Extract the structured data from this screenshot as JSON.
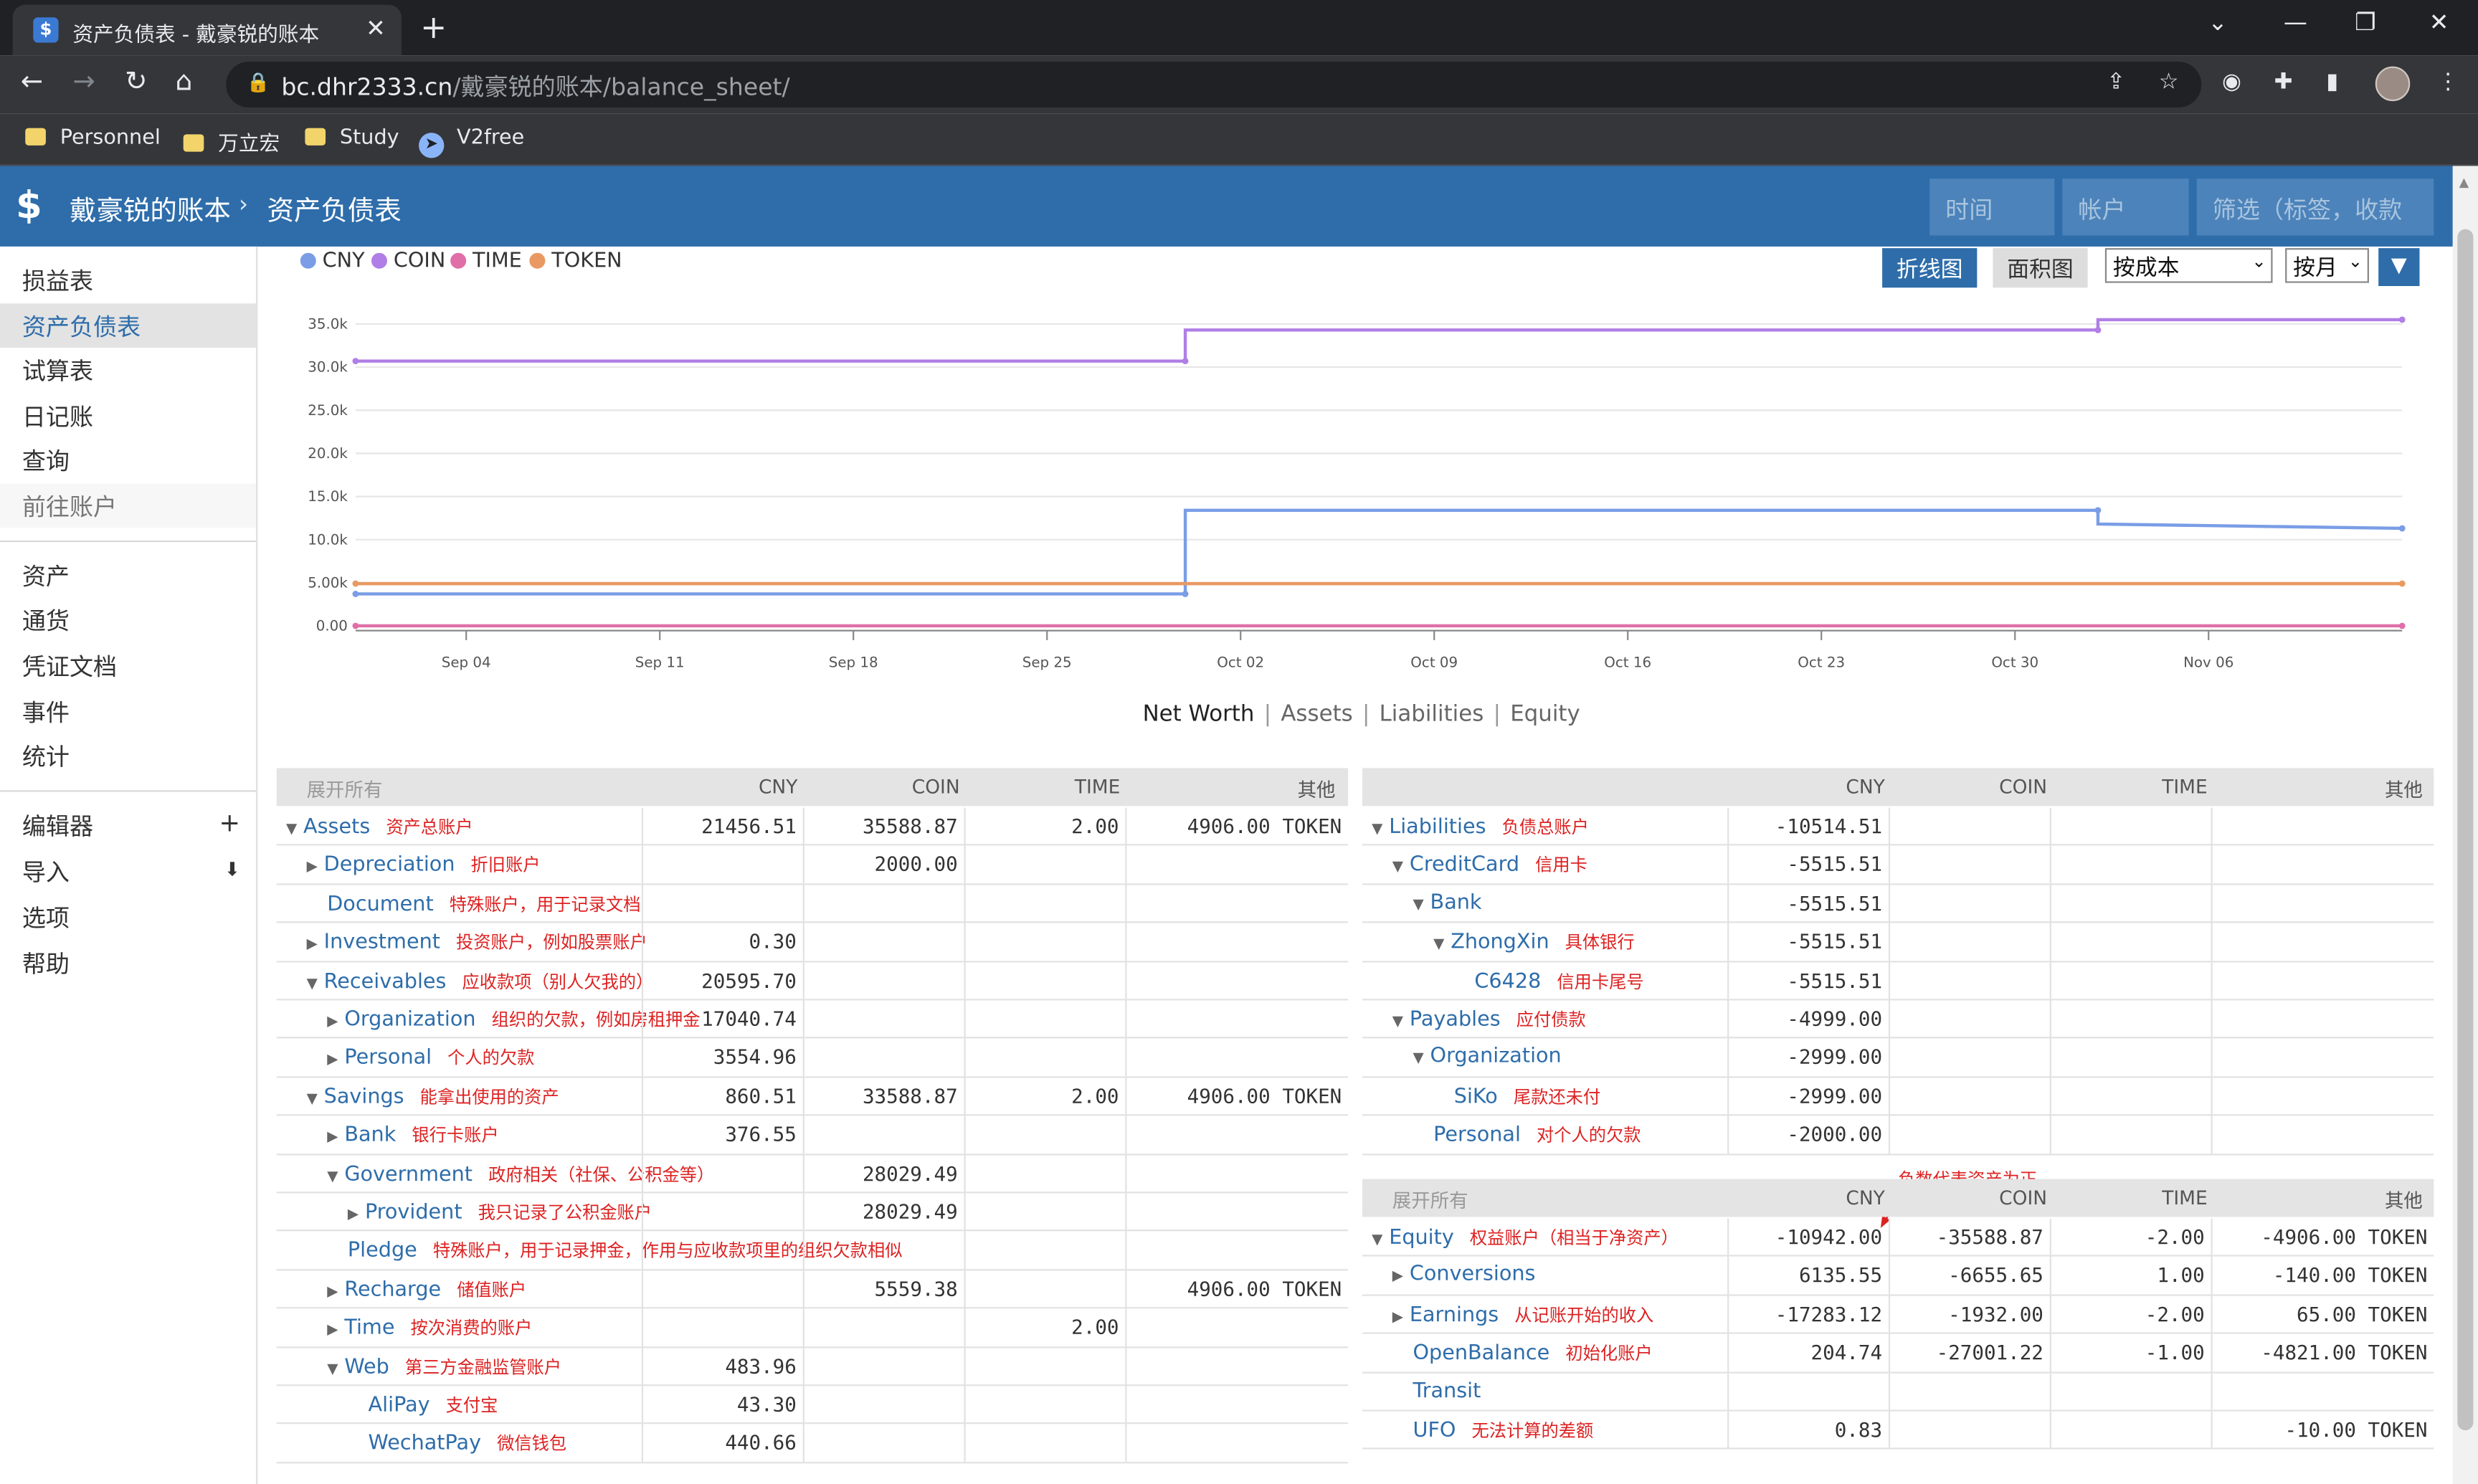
{
  "browser": {
    "tab_title": "资产负债表 - 戴豪锐的账本",
    "url_host": "bc.dhr2333.cn",
    "url_path": "/戴豪锐的账本/balance_sheet/",
    "bookmarks": [
      "Personnel",
      "万立宏",
      "Study",
      "V2free"
    ]
  },
  "header": {
    "app_title": "戴豪锐的账本",
    "separator": "›",
    "page_title": "资产负债表",
    "time_placeholder": "时间",
    "account_placeholder": "帐户",
    "filter_placeholder": "筛选（标签，收款"
  },
  "sidebar": {
    "group1": [
      "损益表",
      "资产负债表",
      "试算表",
      "日记账",
      "查询",
      "前往账户"
    ],
    "group2": [
      "资产",
      "通货",
      "凭证文档",
      "事件",
      "统计"
    ],
    "group3": [
      "编辑器",
      "导入",
      "选项",
      "帮助"
    ],
    "active": "资产负债表"
  },
  "chart_controls": {
    "line_btn": "折线图",
    "area_btn": "面积图",
    "conversion": "按成本",
    "interval": "按月",
    "tabs": [
      "Net Worth",
      "Assets",
      "Liabilities",
      "Equity"
    ],
    "active_tab": "Net Worth"
  },
  "chart_data": {
    "type": "line",
    "series": [
      {
        "name": "CNY",
        "color": "#7a9de6",
        "points": [
          [
            "2022-08-31",
            3700
          ],
          [
            "2022-09-30",
            3700
          ],
          [
            "2022-09-30",
            13400
          ],
          [
            "2022-11-02",
            13400
          ],
          [
            "2022-11-02",
            11800
          ],
          [
            "2022-11-13",
            11300
          ]
        ]
      },
      {
        "name": "COIN",
        "color": "#b07ee6",
        "points": [
          [
            "2022-08-31",
            30700
          ],
          [
            "2022-09-30",
            30700
          ],
          [
            "2022-09-30",
            34300
          ],
          [
            "2022-11-02",
            34300
          ],
          [
            "2022-11-02",
            35500
          ],
          [
            "2022-11-13",
            35500
          ]
        ]
      },
      {
        "name": "TIME",
        "color": "#e06fa8",
        "points": [
          [
            "2022-08-31",
            0
          ],
          [
            "2022-11-13",
            0
          ]
        ]
      },
      {
        "name": "TOKEN",
        "color": "#e89a62",
        "points": [
          [
            "2022-08-31",
            4900
          ],
          [
            "2022-11-13",
            4900
          ]
        ]
      }
    ],
    "y_ticks": [
      "0.00",
      "5.00k",
      "10.0k",
      "15.0k",
      "20.0k",
      "25.0k",
      "30.0k",
      "35.0k"
    ],
    "x_ticks": [
      "Sep 04",
      "Sep 11",
      "Sep 18",
      "Sep 25",
      "Oct 02",
      "Oct 09",
      "Oct 16",
      "Oct 23",
      "Oct 30",
      "Nov 06"
    ],
    "ylim": [
      0,
      35000
    ],
    "legend_position": "top-left",
    "grid": "horizontal"
  },
  "tables": {
    "headers": {
      "expand_all": "展开所有",
      "cny": "CNY",
      "coin": "COIN",
      "time": "TIME",
      "other": "其他"
    },
    "assets": [
      {
        "name": "Assets",
        "note": "资产总账户",
        "level": 0,
        "tri": "open",
        "cny": "21456.51",
        "coin": "35588.87",
        "time": "2.00",
        "other": "4906.00 TOKEN"
      },
      {
        "name": "Depreciation",
        "note": "折旧账户",
        "level": 1,
        "tri": "closed",
        "cny": "",
        "coin": "2000.00",
        "time": "",
        "other": ""
      },
      {
        "name": "Document",
        "note": "特殊账户，用于记录文档",
        "level": 1,
        "tri": "none",
        "cny": "",
        "coin": "",
        "time": "",
        "other": ""
      },
      {
        "name": "Investment",
        "note": "投资账户，例如股票账户",
        "level": 1,
        "tri": "closed",
        "cny": "0.30",
        "coin": "",
        "time": "",
        "other": ""
      },
      {
        "name": "Receivables",
        "note": "应收款项（别人欠我的）",
        "level": 1,
        "tri": "open",
        "cny": "20595.70",
        "coin": "",
        "time": "",
        "other": ""
      },
      {
        "name": "Organization",
        "note": "组织的欠款，例如房租押金",
        "level": 2,
        "tri": "closed",
        "cny": "17040.74",
        "coin": "",
        "time": "",
        "other": ""
      },
      {
        "name": "Personal",
        "note": "个人的欠款",
        "level": 2,
        "tri": "closed",
        "cny": "3554.96",
        "coin": "",
        "time": "",
        "other": ""
      },
      {
        "name": "Savings",
        "note": "能拿出使用的资产",
        "level": 1,
        "tri": "open",
        "cny": "860.51",
        "coin": "33588.87",
        "time": "2.00",
        "other": "4906.00 TOKEN"
      },
      {
        "name": "Bank",
        "note": "银行卡账户",
        "level": 2,
        "tri": "closed",
        "cny": "376.55",
        "coin": "",
        "time": "",
        "other": ""
      },
      {
        "name": "Government",
        "note": "政府相关（社保、公积金等）",
        "level": 2,
        "tri": "open",
        "cny": "",
        "coin": "28029.49",
        "time": "",
        "other": ""
      },
      {
        "name": "Provident",
        "note": "我只记录了公积金账户",
        "level": 3,
        "tri": "closed",
        "cny": "",
        "coin": "28029.49",
        "time": "",
        "other": ""
      },
      {
        "name": "Pledge",
        "note": "特殊账户，用于记录押金，作用与应收款项里的组织欠款相似",
        "level": 2,
        "tri": "none",
        "cny": "",
        "coin": "",
        "time": "",
        "other": ""
      },
      {
        "name": "Recharge",
        "note": "储值账户",
        "level": 2,
        "tri": "closed",
        "cny": "",
        "coin": "5559.38",
        "time": "",
        "other": "4906.00 TOKEN"
      },
      {
        "name": "Time",
        "note": "按次消费的账户",
        "level": 2,
        "tri": "closed",
        "cny": "",
        "coin": "",
        "time": "2.00",
        "other": ""
      },
      {
        "name": "Web",
        "note": "第三方金融监管账户",
        "level": 2,
        "tri": "open",
        "cny": "483.96",
        "coin": "",
        "time": "",
        "other": ""
      },
      {
        "name": "AliPay",
        "note": "支付宝",
        "level": 3,
        "tri": "none",
        "cny": "43.30",
        "coin": "",
        "time": "",
        "other": ""
      },
      {
        "name": "WechatPay",
        "note": "微信钱包",
        "level": 3,
        "tri": "none",
        "cny": "440.66",
        "coin": "",
        "time": "",
        "other": ""
      }
    ],
    "liabilities": [
      {
        "name": "Liabilities",
        "note": "负债总账户",
        "level": 0,
        "tri": "open",
        "cny": "-10514.51",
        "coin": "",
        "time": "",
        "other": ""
      },
      {
        "name": "CreditCard",
        "note": "信用卡",
        "level": 1,
        "tri": "open",
        "cny": "-5515.51",
        "coin": "",
        "time": "",
        "other": ""
      },
      {
        "name": "Bank",
        "note": "",
        "level": 2,
        "tri": "open",
        "cny": "-5515.51",
        "coin": "",
        "time": "",
        "other": ""
      },
      {
        "name": "ZhongXin",
        "note": "具体银行",
        "level": 3,
        "tri": "open",
        "cny": "-5515.51",
        "coin": "",
        "time": "",
        "other": ""
      },
      {
        "name": "C6428",
        "note": "信用卡尾号",
        "level": 4,
        "tri": "none",
        "cny": "-5515.51",
        "coin": "",
        "time": "",
        "other": ""
      },
      {
        "name": "Payables",
        "note": "应付债款",
        "level": 1,
        "tri": "open",
        "cny": "-4999.00",
        "coin": "",
        "time": "",
        "other": ""
      },
      {
        "name": "Organization",
        "note": "",
        "level": 2,
        "tri": "open",
        "cny": "-2999.00",
        "coin": "",
        "time": "",
        "other": ""
      },
      {
        "name": "SiKo",
        "note": "尾款还未付",
        "level": 3,
        "tri": "none",
        "cny": "-2999.00",
        "coin": "",
        "time": "",
        "other": ""
      },
      {
        "name": "Personal",
        "note": "对个人的欠款",
        "level": 2,
        "tri": "none",
        "cny": "-2000.00",
        "coin": "",
        "time": "",
        "other": ""
      }
    ],
    "equity_annotation": "负数代表资产为正",
    "equity": [
      {
        "name": "Equity",
        "note": "权益账户（相当于净资产）",
        "level": 0,
        "tri": "open",
        "cny": "-10942.00",
        "coin": "-35588.87",
        "time": "-2.00",
        "other": "-4906.00 TOKEN"
      },
      {
        "name": "Conversions",
        "note": "",
        "level": 1,
        "tri": "closed",
        "cny": "6135.55",
        "coin": "-6655.65",
        "time": "1.00",
        "other": "-140.00 TOKEN"
      },
      {
        "name": "Earnings",
        "note": "从记账开始的收入",
        "level": 1,
        "tri": "closed",
        "cny": "-17283.12",
        "coin": "-1932.00",
        "time": "-2.00",
        "other": "65.00 TOKEN"
      },
      {
        "name": "OpenBalance",
        "note": "初始化账户",
        "level": 1,
        "tri": "none",
        "cny": "204.74",
        "coin": "-27001.22",
        "time": "-1.00",
        "other": "-4821.00 TOKEN"
      },
      {
        "name": "Transit",
        "note": "",
        "level": 1,
        "tri": "none",
        "cny": "",
        "coin": "",
        "time": "",
        "other": ""
      },
      {
        "name": "UFO",
        "note": "无法计算的差额",
        "level": 1,
        "tri": "none",
        "cny": "0.83",
        "coin": "",
        "time": "",
        "other": "-10.00 TOKEN"
      }
    ]
  }
}
